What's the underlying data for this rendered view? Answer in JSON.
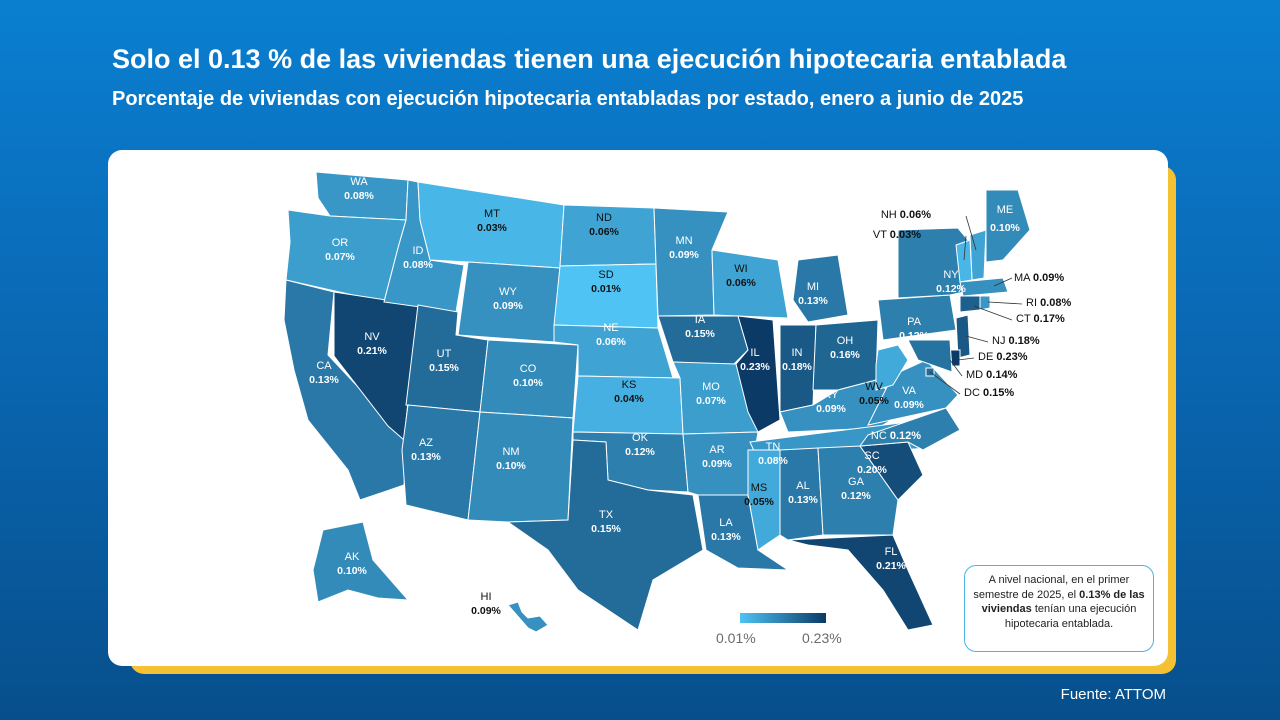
{
  "title": "Solo el 0.13 % de las viviendas tienen una ejecución hipotecaria entablada",
  "subtitle": "Porcentaje de viviendas con ejecución hipotecaria entabladas por estado, enero a junio de 2025",
  "source": "Fuente: ATTOM",
  "note": {
    "text_before": "A nivel nacional, en el primer semestre de 2025, el ",
    "text_bold": "0.13% de las viviendas",
    "text_after": " tenían una ejecución hipotecaria entablada."
  },
  "legend": {
    "min": "0.01%",
    "max": "0.23%",
    "color_min": "#4ec3f4",
    "color_max": "#0b3a66"
  },
  "colors": {
    "card_border": "#f3c131",
    "background": "#0a6bb8"
  },
  "chart_data": {
    "type": "choropleth",
    "unit": "%",
    "range": [
      0.01,
      0.23
    ],
    "states": [
      {
        "code": "WA",
        "value": "0.08%"
      },
      {
        "code": "OR",
        "value": "0.07%"
      },
      {
        "code": "CA",
        "value": "0.13%"
      },
      {
        "code": "NV",
        "value": "0.21%"
      },
      {
        "code": "ID",
        "value": "0.08%"
      },
      {
        "code": "MT",
        "value": "0.03%"
      },
      {
        "code": "WY",
        "value": "0.09%"
      },
      {
        "code": "UT",
        "value": "0.15%"
      },
      {
        "code": "AZ",
        "value": "0.13%"
      },
      {
        "code": "CO",
        "value": "0.10%"
      },
      {
        "code": "NM",
        "value": "0.10%"
      },
      {
        "code": "ND",
        "value": "0.06%"
      },
      {
        "code": "SD",
        "value": "0.01%"
      },
      {
        "code": "NE",
        "value": "0.06%"
      },
      {
        "code": "KS",
        "value": "0.04%"
      },
      {
        "code": "OK",
        "value": "0.12%"
      },
      {
        "code": "TX",
        "value": "0.15%"
      },
      {
        "code": "MN",
        "value": "0.09%"
      },
      {
        "code": "IA",
        "value": "0.15%"
      },
      {
        "code": "MO",
        "value": "0.07%"
      },
      {
        "code": "AR",
        "value": "0.09%"
      },
      {
        "code": "LA",
        "value": "0.13%"
      },
      {
        "code": "WI",
        "value": "0.06%"
      },
      {
        "code": "IL",
        "value": "0.23%"
      },
      {
        "code": "MI",
        "value": "0.13%"
      },
      {
        "code": "IN",
        "value": "0.18%"
      },
      {
        "code": "OH",
        "value": "0.16%"
      },
      {
        "code": "KY",
        "value": "0.09%"
      },
      {
        "code": "TN",
        "value": "0.08%"
      },
      {
        "code": "MS",
        "value": "0.05%"
      },
      {
        "code": "AL",
        "value": "0.13%"
      },
      {
        "code": "GA",
        "value": "0.12%"
      },
      {
        "code": "FL",
        "value": "0.21%"
      },
      {
        "code": "SC",
        "value": "0.20%"
      },
      {
        "code": "NC",
        "value": "0.12%"
      },
      {
        "code": "VA",
        "value": "0.09%"
      },
      {
        "code": "WV",
        "value": "0.05%"
      },
      {
        "code": "PA",
        "value": "0.12%"
      },
      {
        "code": "NY",
        "value": "0.12%"
      },
      {
        "code": "ME",
        "value": "0.10%"
      },
      {
        "code": "NH",
        "value": "0.06%"
      },
      {
        "code": "VT",
        "value": "0.03%"
      },
      {
        "code": "MA",
        "value": "0.09%"
      },
      {
        "code": "RI",
        "value": "0.08%"
      },
      {
        "code": "CT",
        "value": "0.17%"
      },
      {
        "code": "NJ",
        "value": "0.18%"
      },
      {
        "code": "DE",
        "value": "0.23%"
      },
      {
        "code": "MD",
        "value": "0.14%"
      },
      {
        "code": "DC",
        "value": "0.15%"
      },
      {
        "code": "AK",
        "value": "0.10%"
      },
      {
        "code": "HI",
        "value": "0.09%"
      }
    ]
  }
}
